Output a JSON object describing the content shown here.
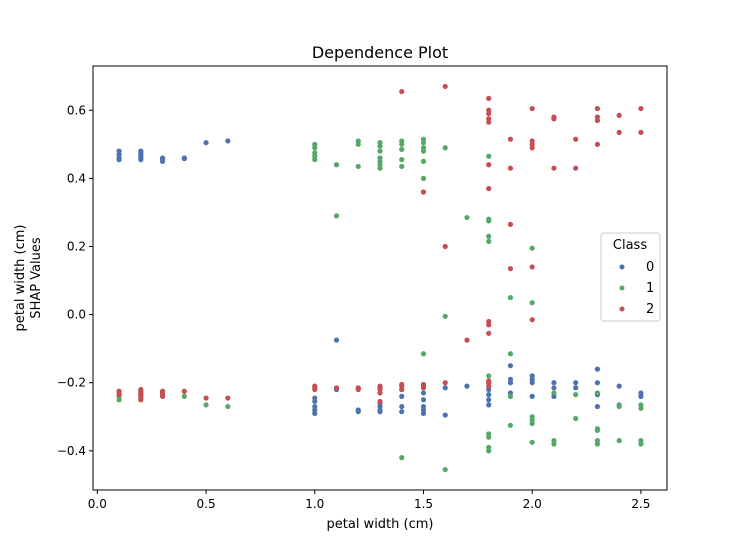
{
  "chart_data": {
    "type": "scatter",
    "title": "Dependence Plot",
    "xlabel": "petal width (cm)",
    "ylabel_lines": [
      "petal width (cm)",
      "SHAP Values"
    ],
    "xlim": [
      -0.02,
      2.62
    ],
    "ylim": [
      -0.515,
      0.73
    ],
    "xticks": [
      0.0,
      0.5,
      1.0,
      1.5,
      2.0,
      2.5
    ],
    "xtick_labels": [
      "0.0",
      "0.5",
      "1.0",
      "1.5",
      "2.0",
      "2.5"
    ],
    "yticks": [
      -0.4,
      -0.2,
      0.0,
      0.2,
      0.4,
      0.6
    ],
    "ytick_labels": [
      "−0.4",
      "−0.2",
      "0.0",
      "0.2",
      "0.4",
      "0.6"
    ],
    "grid": false,
    "legend": {
      "title": "Class",
      "position": "right"
    },
    "series": [
      {
        "name": "0",
        "color": "#4c72b0",
        "points": [
          [
            0.1,
            0.48
          ],
          [
            0.1,
            0.47
          ],
          [
            0.1,
            0.46
          ],
          [
            0.1,
            0.455
          ],
          [
            0.2,
            0.48
          ],
          [
            0.2,
            0.475
          ],
          [
            0.2,
            0.47
          ],
          [
            0.2,
            0.465
          ],
          [
            0.2,
            0.46
          ],
          [
            0.2,
            0.455
          ],
          [
            0.3,
            0.46
          ],
          [
            0.3,
            0.455
          ],
          [
            0.3,
            0.45
          ],
          [
            0.4,
            0.46
          ],
          [
            0.4,
            0.458
          ],
          [
            0.5,
            0.505
          ],
          [
            0.6,
            0.51
          ],
          [
            1.0,
            -0.245
          ],
          [
            1.0,
            -0.255
          ],
          [
            1.0,
            -0.27
          ],
          [
            1.0,
            -0.28
          ],
          [
            1.0,
            -0.29
          ],
          [
            1.1,
            -0.075
          ],
          [
            1.1,
            -0.22
          ],
          [
            1.2,
            -0.28
          ],
          [
            1.2,
            -0.285
          ],
          [
            1.3,
            -0.26
          ],
          [
            1.3,
            -0.27
          ],
          [
            1.3,
            -0.28
          ],
          [
            1.3,
            -0.285
          ],
          [
            1.4,
            -0.22
          ],
          [
            1.4,
            -0.24
          ],
          [
            1.4,
            -0.27
          ],
          [
            1.4,
            -0.285
          ],
          [
            1.5,
            -0.23
          ],
          [
            1.5,
            -0.25
          ],
          [
            1.5,
            -0.27
          ],
          [
            1.5,
            -0.28
          ],
          [
            1.5,
            -0.29
          ],
          [
            1.6,
            -0.215
          ],
          [
            1.6,
            -0.295
          ],
          [
            1.7,
            -0.21
          ],
          [
            1.8,
            -0.2
          ],
          [
            1.8,
            -0.22
          ],
          [
            1.8,
            -0.235
          ],
          [
            1.8,
            -0.25
          ],
          [
            1.8,
            -0.265
          ],
          [
            1.9,
            -0.15
          ],
          [
            1.9,
            -0.19
          ],
          [
            1.9,
            -0.2
          ],
          [
            1.9,
            -0.23
          ],
          [
            2.0,
            -0.18
          ],
          [
            2.0,
            -0.19
          ],
          [
            2.0,
            -0.2
          ],
          [
            2.0,
            -0.24
          ],
          [
            2.1,
            -0.2
          ],
          [
            2.1,
            -0.215
          ],
          [
            2.1,
            -0.24
          ],
          [
            2.2,
            -0.2
          ],
          [
            2.2,
            -0.215
          ],
          [
            2.3,
            -0.16
          ],
          [
            2.3,
            -0.2
          ],
          [
            2.3,
            -0.235
          ],
          [
            2.3,
            -0.27
          ],
          [
            2.4,
            -0.21
          ],
          [
            2.5,
            -0.23
          ],
          [
            2.5,
            -0.24
          ]
        ]
      },
      {
        "name": "1",
        "color": "#55a868",
        "points": [
          [
            0.1,
            -0.24
          ],
          [
            0.1,
            -0.25
          ],
          [
            0.2,
            -0.235
          ],
          [
            0.2,
            -0.245
          ],
          [
            0.3,
            -0.235
          ],
          [
            0.4,
            -0.24
          ],
          [
            0.5,
            -0.265
          ],
          [
            0.6,
            -0.27
          ],
          [
            1.0,
            0.5
          ],
          [
            1.0,
            0.49
          ],
          [
            1.0,
            0.475
          ],
          [
            1.0,
            0.465
          ],
          [
            1.0,
            0.455
          ],
          [
            1.1,
            0.44
          ],
          [
            1.1,
            0.29
          ],
          [
            1.2,
            0.51
          ],
          [
            1.2,
            0.5
          ],
          [
            1.2,
            0.435
          ],
          [
            1.3,
            0.505
          ],
          [
            1.3,
            0.495
          ],
          [
            1.3,
            0.48
          ],
          [
            1.3,
            0.46
          ],
          [
            1.3,
            0.45
          ],
          [
            1.3,
            0.44
          ],
          [
            1.3,
            0.43
          ],
          [
            1.4,
            0.51
          ],
          [
            1.4,
            0.5
          ],
          [
            1.4,
            0.485
          ],
          [
            1.4,
            0.455
          ],
          [
            1.4,
            0.435
          ],
          [
            1.4,
            -0.42
          ],
          [
            1.5,
            0.515
          ],
          [
            1.5,
            0.505
          ],
          [
            1.5,
            0.49
          ],
          [
            1.5,
            0.48
          ],
          [
            1.5,
            0.45
          ],
          [
            1.5,
            0.4
          ],
          [
            1.5,
            -0.115
          ],
          [
            1.6,
            0.49
          ],
          [
            1.6,
            -0.005
          ],
          [
            1.6,
            -0.455
          ],
          [
            1.7,
            0.285
          ],
          [
            1.8,
            0.465
          ],
          [
            1.8,
            0.28
          ],
          [
            1.8,
            0.275
          ],
          [
            1.8,
            0.23
          ],
          [
            1.8,
            0.215
          ],
          [
            1.8,
            -0.18
          ],
          [
            1.8,
            -0.35
          ],
          [
            1.8,
            -0.36
          ],
          [
            1.8,
            -0.39
          ],
          [
            1.8,
            -0.4
          ],
          [
            1.9,
            0.05
          ],
          [
            1.9,
            -0.115
          ],
          [
            1.9,
            -0.24
          ],
          [
            1.9,
            -0.325
          ],
          [
            2.0,
            0.195
          ],
          [
            2.0,
            0.035
          ],
          [
            2.0,
            -0.3
          ],
          [
            2.0,
            -0.31
          ],
          [
            2.0,
            -0.32
          ],
          [
            2.0,
            -0.375
          ],
          [
            2.1,
            -0.23
          ],
          [
            2.1,
            -0.37
          ],
          [
            2.1,
            -0.38
          ],
          [
            2.2,
            -0.235
          ],
          [
            2.2,
            -0.305
          ],
          [
            2.3,
            -0.23
          ],
          [
            2.3,
            -0.335
          ],
          [
            2.3,
            -0.34
          ],
          [
            2.3,
            -0.37
          ],
          [
            2.3,
            -0.38
          ],
          [
            2.4,
            -0.265
          ],
          [
            2.4,
            -0.27
          ],
          [
            2.4,
            -0.37
          ],
          [
            2.5,
            -0.265
          ],
          [
            2.5,
            -0.275
          ],
          [
            2.5,
            -0.37
          ],
          [
            2.5,
            -0.38
          ]
        ]
      },
      {
        "name": "2",
        "color": "#c44e52",
        "points": [
          [
            0.1,
            -0.225
          ],
          [
            0.1,
            -0.23
          ],
          [
            0.1,
            -0.235
          ],
          [
            0.2,
            -0.22
          ],
          [
            0.2,
            -0.225
          ],
          [
            0.2,
            -0.23
          ],
          [
            0.2,
            -0.235
          ],
          [
            0.2,
            -0.24
          ],
          [
            0.2,
            -0.25
          ],
          [
            0.3,
            -0.225
          ],
          [
            0.3,
            -0.23
          ],
          [
            0.3,
            -0.24
          ],
          [
            0.4,
            -0.225
          ],
          [
            0.5,
            -0.245
          ],
          [
            0.6,
            -0.245
          ],
          [
            1.0,
            -0.21
          ],
          [
            1.0,
            -0.215
          ],
          [
            1.0,
            -0.22
          ],
          [
            1.1,
            -0.215
          ],
          [
            1.2,
            -0.215
          ],
          [
            1.2,
            -0.22
          ],
          [
            1.3,
            -0.21
          ],
          [
            1.3,
            -0.215
          ],
          [
            1.3,
            -0.22
          ],
          [
            1.3,
            -0.23
          ],
          [
            1.3,
            -0.255
          ],
          [
            1.4,
            0.655
          ],
          [
            1.4,
            -0.205
          ],
          [
            1.4,
            -0.21
          ],
          [
            1.4,
            -0.22
          ],
          [
            1.5,
            0.36
          ],
          [
            1.5,
            -0.205
          ],
          [
            1.5,
            -0.21
          ],
          [
            1.5,
            -0.215
          ],
          [
            1.6,
            0.67
          ],
          [
            1.6,
            0.2
          ],
          [
            1.6,
            -0.2
          ],
          [
            1.7,
            -0.075
          ],
          [
            1.8,
            0.635
          ],
          [
            1.8,
            0.6
          ],
          [
            1.8,
            0.59
          ],
          [
            1.8,
            0.575
          ],
          [
            1.8,
            0.565
          ],
          [
            1.8,
            0.44
          ],
          [
            1.8,
            0.37
          ],
          [
            1.8,
            -0.02
          ],
          [
            1.8,
            -0.03
          ],
          [
            1.8,
            -0.055
          ],
          [
            1.8,
            -0.195
          ],
          [
            1.8,
            -0.2
          ],
          [
            1.8,
            -0.21
          ],
          [
            1.9,
            0.515
          ],
          [
            1.9,
            0.43
          ],
          [
            1.9,
            0.265
          ],
          [
            1.9,
            0.135
          ],
          [
            2.0,
            0.605
          ],
          [
            2.0,
            0.51
          ],
          [
            2.0,
            0.5
          ],
          [
            2.0,
            0.49
          ],
          [
            2.0,
            0.14
          ],
          [
            2.0,
            -0.015
          ],
          [
            2.1,
            0.58
          ],
          [
            2.1,
            0.575
          ],
          [
            2.1,
            0.43
          ],
          [
            2.2,
            0.515
          ],
          [
            2.2,
            0.43
          ],
          [
            2.3,
            0.605
          ],
          [
            2.3,
            0.58
          ],
          [
            2.3,
            0.57
          ],
          [
            2.3,
            0.5
          ],
          [
            2.4,
            0.585
          ],
          [
            2.4,
            0.535
          ],
          [
            2.5,
            0.605
          ],
          [
            2.5,
            0.535
          ]
        ]
      }
    ]
  }
}
